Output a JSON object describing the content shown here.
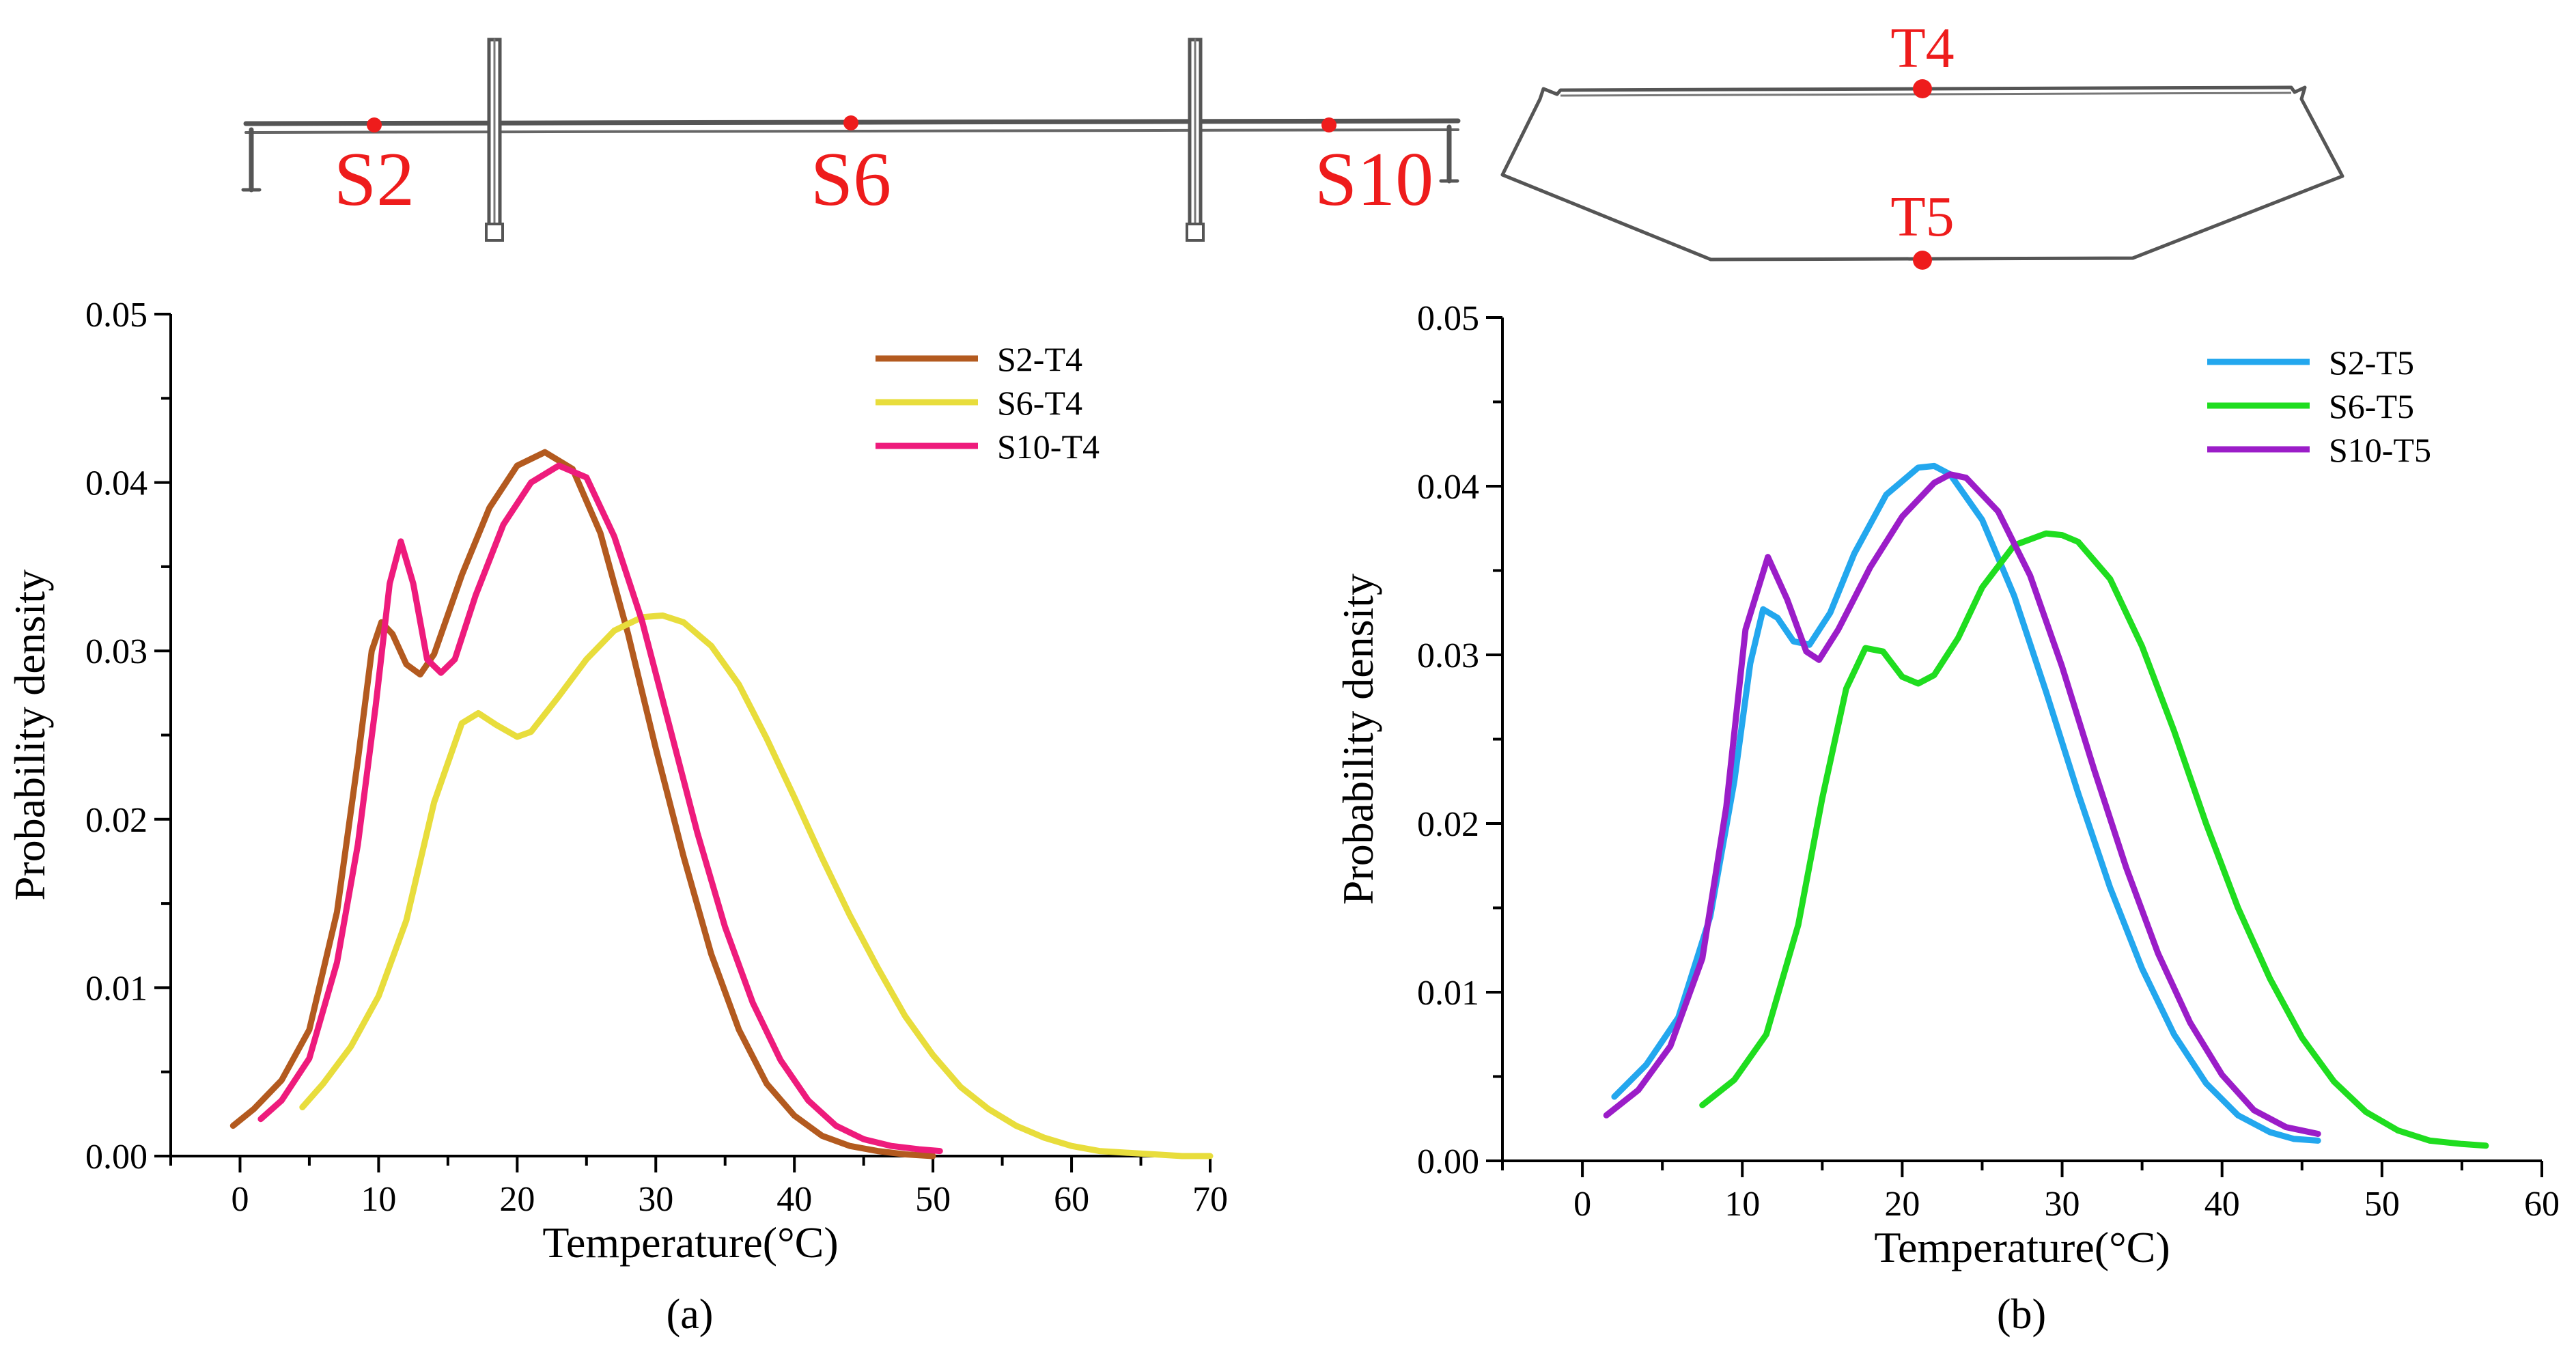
{
  "colors": {
    "axis": "#000000",
    "marker": "#ee1c1c",
    "S2-T4": "#b35a1f",
    "S6-T4": "#e8dd3c",
    "S10-T4": "#ee1b7c",
    "S2-T5": "#23a7ee",
    "S6-T5": "#1fdd1f",
    "S10-T5": "#9b1dc8",
    "structure": "#555555"
  },
  "schematic": {
    "bridge_labels": [
      "S2",
      "S6",
      "S10"
    ],
    "section_labels": [
      "T4",
      "T5"
    ]
  },
  "chart_data": [
    {
      "type": "line",
      "panel_label": "(a)",
      "xlabel": "Temperature(°C)",
      "ylabel": "Probability density",
      "xlim": [
        -5,
        70
      ],
      "ylim": [
        0,
        0.05
      ],
      "xticks": [
        0,
        10,
        20,
        30,
        40,
        50,
        60,
        70
      ],
      "xtick_labels": [
        "0",
        "10",
        "20",
        "30",
        "40",
        "50",
        "60",
        "70"
      ],
      "yticks": [
        0,
        0.01,
        0.02,
        0.03,
        0.04,
        0.05
      ],
      "ytick_labels": [
        "0.00",
        "0.01",
        "0.02",
        "0.03",
        "0.04",
        "0.05"
      ],
      "legend_position": "top-right",
      "series": [
        {
          "name": "S2-T4",
          "x": [
            -0.5,
            1,
            3,
            5,
            7,
            8.5,
            9.5,
            10.2,
            11,
            12,
            13,
            14,
            16,
            18,
            20,
            22,
            24,
            26,
            28,
            30,
            32,
            34,
            36,
            38,
            40,
            42,
            44,
            46,
            48,
            50
          ],
          "y": [
            0.0018,
            0.0028,
            0.0045,
            0.0075,
            0.0145,
            0.0235,
            0.03,
            0.0317,
            0.031,
            0.0292,
            0.0286,
            0.0298,
            0.0345,
            0.0385,
            0.041,
            0.0418,
            0.0408,
            0.037,
            0.031,
            0.0242,
            0.0178,
            0.012,
            0.0075,
            0.0043,
            0.0024,
            0.0012,
            0.0006,
            0.0003,
            0.0001,
            0.0
          ]
        },
        {
          "name": "S6-T4",
          "x": [
            4.5,
            6,
            8,
            10,
            12,
            14,
            16,
            17.2,
            18.5,
            20,
            21,
            23,
            25,
            27,
            29,
            30.5,
            32,
            34,
            36,
            38,
            40,
            42,
            44,
            46,
            48,
            50,
            52,
            54,
            56,
            58,
            60,
            62,
            64,
            66,
            68,
            70
          ],
          "y": [
            0.0029,
            0.0043,
            0.0065,
            0.0095,
            0.014,
            0.021,
            0.0257,
            0.0263,
            0.0256,
            0.0249,
            0.0252,
            0.0273,
            0.0295,
            0.0312,
            0.032,
            0.0321,
            0.0317,
            0.0303,
            0.028,
            0.0248,
            0.0213,
            0.0177,
            0.0143,
            0.0112,
            0.0083,
            0.006,
            0.0041,
            0.0028,
            0.0018,
            0.0011,
            0.0006,
            0.0003,
            0.0002,
            0.0001,
            0.0,
            0.0
          ]
        },
        {
          "name": "S10-T4",
          "x": [
            1.5,
            3,
            5,
            7,
            8.5,
            9.8,
            10.8,
            11.6,
            12.5,
            13.5,
            14.5,
            15.5,
            17,
            19,
            21,
            23,
            25,
            27,
            29,
            31,
            33,
            35,
            37,
            39,
            41,
            43,
            45,
            47,
            49,
            50.5
          ],
          "y": [
            0.0022,
            0.0033,
            0.0058,
            0.0115,
            0.0185,
            0.0268,
            0.034,
            0.0365,
            0.034,
            0.0295,
            0.0287,
            0.0295,
            0.0333,
            0.0375,
            0.04,
            0.041,
            0.0403,
            0.0368,
            0.0318,
            0.0255,
            0.0192,
            0.0136,
            0.0091,
            0.0057,
            0.0033,
            0.0018,
            0.001,
            0.0006,
            0.0004,
            0.0003
          ]
        }
      ]
    },
    {
      "type": "line",
      "panel_label": "(b)",
      "xlabel": "Temperature(°C)",
      "ylabel": "Probability density",
      "xlim": [
        -5,
        60
      ],
      "ylim": [
        0,
        0.05
      ],
      "xticks": [
        0,
        10,
        20,
        30,
        40,
        50,
        60
      ],
      "xtick_labels": [
        "0",
        "10",
        "20",
        "30",
        "40",
        "50",
        "60"
      ],
      "yticks": [
        0,
        0.01,
        0.02,
        0.03,
        0.04,
        0.05
      ],
      "ytick_labels": [
        "0.00",
        "0.01",
        "0.02",
        "0.03",
        "0.04",
        "0.05"
      ],
      "legend_position": "top-right",
      "series": [
        {
          "name": "S2-T5",
          "x": [
            2,
            4,
            6,
            8,
            9.5,
            10.5,
            11.3,
            12.2,
            13.2,
            14.2,
            15.5,
            17,
            19,
            21,
            22,
            23,
            25,
            27,
            29,
            31,
            33,
            35,
            37,
            39,
            41,
            43,
            44.5,
            46
          ],
          "y": [
            0.0038,
            0.0057,
            0.0085,
            0.0145,
            0.0225,
            0.0295,
            0.0327,
            0.0322,
            0.0308,
            0.0306,
            0.0325,
            0.036,
            0.0395,
            0.0411,
            0.0412,
            0.0407,
            0.038,
            0.0335,
            0.0278,
            0.0218,
            0.0162,
            0.0114,
            0.0075,
            0.0046,
            0.0027,
            0.0017,
            0.0013,
            0.0012
          ]
        },
        {
          "name": "S6-T5",
          "x": [
            7.5,
            9.5,
            11.5,
            13.5,
            15,
            16.5,
            17.7,
            18.8,
            20,
            21,
            22,
            23.5,
            25,
            27,
            29,
            30,
            31,
            33,
            35,
            37,
            39,
            41,
            43,
            45,
            47,
            49,
            51,
            53,
            55,
            56.5
          ],
          "y": [
            0.0033,
            0.0048,
            0.0075,
            0.014,
            0.0215,
            0.028,
            0.0304,
            0.0302,
            0.0287,
            0.0283,
            0.0288,
            0.031,
            0.034,
            0.0365,
            0.0372,
            0.0371,
            0.0367,
            0.0345,
            0.0305,
            0.0255,
            0.02,
            0.015,
            0.0108,
            0.0073,
            0.0047,
            0.0029,
            0.0018,
            0.0012,
            0.001,
            0.0009
          ]
        },
        {
          "name": "S10-T5",
          "x": [
            1.5,
            3.5,
            5.5,
            7.5,
            9,
            10.2,
            11.6,
            12.8,
            14,
            14.8,
            16,
            18,
            20,
            22,
            23,
            24,
            26,
            28,
            30,
            32,
            34,
            36,
            38,
            40,
            42,
            44,
            46
          ],
          "y": [
            0.0027,
            0.0042,
            0.0068,
            0.012,
            0.021,
            0.0315,
            0.0358,
            0.0333,
            0.0302,
            0.0297,
            0.0315,
            0.0352,
            0.0382,
            0.0402,
            0.0407,
            0.0405,
            0.0385,
            0.0347,
            0.0293,
            0.0232,
            0.0174,
            0.0123,
            0.0082,
            0.0051,
            0.003,
            0.002,
            0.0016
          ]
        }
      ]
    }
  ]
}
